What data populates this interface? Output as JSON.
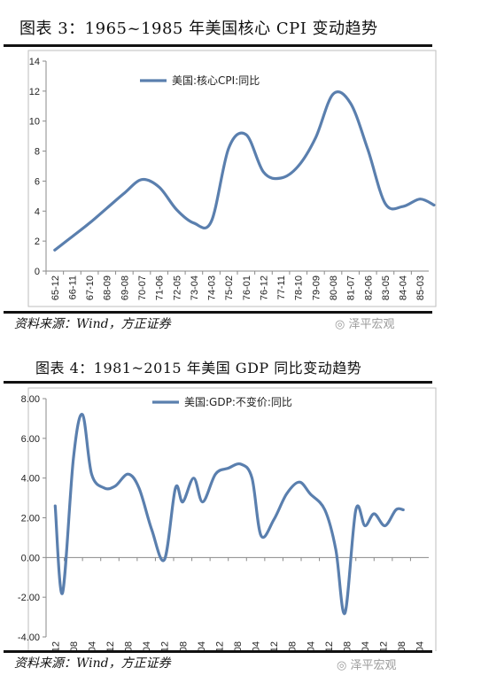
{
  "chart_data": [
    {
      "type": "line",
      "title": "图表 3：1965~1985 年美国核心 CPI 变动趋势",
      "series": [
        {
          "name": "美国:核心CPI:同比",
          "color": "#5a7fae"
        }
      ],
      "x_tick_labels": [
        "65-12",
        "66-11",
        "67-10",
        "68-09",
        "69-08",
        "70-07",
        "71-06",
        "72-05",
        "73-04",
        "74-03",
        "75-02",
        "76-01",
        "76-12",
        "77-11",
        "78-10",
        "79-09",
        "80-08",
        "81-07",
        "82-06",
        "83-05",
        "84-04",
        "85-03"
      ],
      "points": [
        [
          0,
          1.4
        ],
        [
          1,
          2.3
        ],
        [
          2,
          3.2
        ],
        [
          3,
          4.2
        ],
        [
          4,
          5.2
        ],
        [
          5,
          6.1
        ],
        [
          6,
          5.6
        ],
        [
          7,
          4.1
        ],
        [
          8,
          3.2
        ],
        [
          9,
          3.3
        ],
        [
          10,
          8.2
        ],
        [
          11,
          9.1
        ],
        [
          12,
          6.6
        ],
        [
          13,
          6.2
        ],
        [
          14,
          7.0
        ],
        [
          15,
          8.9
        ],
        [
          16,
          11.8
        ],
        [
          17,
          11.2
        ],
        [
          18,
          8.1
        ],
        [
          19,
          4.5
        ],
        [
          20,
          4.3
        ],
        [
          21,
          4.8
        ],
        [
          21.8,
          4.4
        ]
      ],
      "ylim": [
        0,
        14
      ],
      "y_ticks": [
        0,
        2,
        4,
        6,
        8,
        10,
        12,
        14
      ],
      "grid": false,
      "legend_position": "top-center"
    },
    {
      "type": "line",
      "title": "图表 4：1981~2015 年美国 GDP 同比变动趋势",
      "series": [
        {
          "name": "美国:GDP:不变价:同比",
          "color": "#5a7fae"
        }
      ],
      "x_tick_labels": [
        "81-12",
        "83-08",
        "85-04",
        "86-12",
        "88-08",
        "90-04",
        "91-12",
        "93-08",
        "95-04",
        "96-12",
        "98-08",
        "00-04",
        "01-12",
        "03-08",
        "05-04",
        "06-12",
        "08-08",
        "10-04",
        "11-12",
        "13-08",
        "15-04"
      ],
      "points": [
        [
          0,
          2.6
        ],
        [
          0.4,
          -1.8
        ],
        [
          1,
          5.0
        ],
        [
          1.5,
          7.2
        ],
        [
          2,
          4.2
        ],
        [
          2.7,
          3.5
        ],
        [
          3.3,
          3.6
        ],
        [
          4,
          4.2
        ],
        [
          4.6,
          3.5
        ],
        [
          5.3,
          1.4
        ],
        [
          6,
          -0.1
        ],
        [
          6.6,
          3.5
        ],
        [
          7,
          2.8
        ],
        [
          7.6,
          4.0
        ],
        [
          8.1,
          2.8
        ],
        [
          8.8,
          4.2
        ],
        [
          9.5,
          4.5
        ],
        [
          10.2,
          4.7
        ],
        [
          10.8,
          4.0
        ],
        [
          11.3,
          1.1
        ],
        [
          12,
          1.9
        ],
        [
          12.7,
          3.2
        ],
        [
          13.4,
          3.8
        ],
        [
          14,
          3.2
        ],
        [
          14.8,
          2.4
        ],
        [
          15.4,
          0.4
        ],
        [
          15.9,
          -2.8
        ],
        [
          16.5,
          2.4
        ],
        [
          17,
          1.6
        ],
        [
          17.5,
          2.2
        ],
        [
          18.1,
          1.6
        ],
        [
          18.7,
          2.4
        ],
        [
          19.1,
          2.4
        ]
      ],
      "ylim": [
        -4.0,
        8.0
      ],
      "y_tick_labels": [
        "-4.00",
        "-2.00",
        "0.00",
        "2.00",
        "4.00",
        "6.00",
        "8.00"
      ],
      "y_ticks": [
        -4,
        -2,
        0,
        2,
        4,
        6,
        8
      ],
      "grid": false,
      "legend_position": "top-center"
    }
  ],
  "source1": "资料来源：Wind，方正证券",
  "source2": "资料来源：Wind，方正证券",
  "watermark": "泽平宏观"
}
